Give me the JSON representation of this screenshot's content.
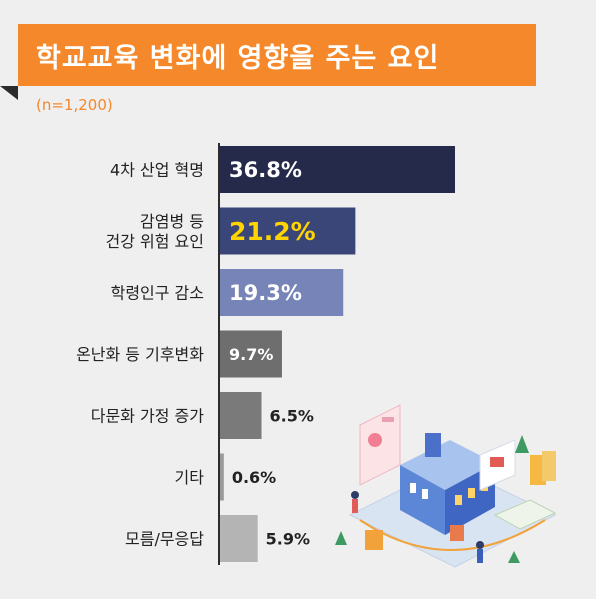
{
  "header": {
    "title": "학교교육 변화에 영향을 주는 요인",
    "sample": "(n=1,200)"
  },
  "colors": {
    "banner": "#f4882a",
    "bars": [
      "#25294a",
      "#3a4677",
      "#7784b7",
      "#6e6e6e",
      "#7a7a7a",
      "#9a9a9a",
      "#b4b4b4"
    ],
    "highlight_text": "#ffd400"
  },
  "chart_data": {
    "type": "bar",
    "orientation": "horizontal",
    "categories": [
      [
        "4차 산업 혁명"
      ],
      [
        "감염병 등",
        "건강 위험 요인"
      ],
      [
        "학령인구 감소"
      ],
      [
        "온난화 등 기후변화"
      ],
      [
        "다문화 가정 증가"
      ],
      [
        "기타"
      ],
      [
        "모름/무응답"
      ]
    ],
    "values": [
      36.8,
      21.2,
      19.3,
      9.7,
      6.5,
      0.6,
      5.9
    ],
    "value_labels": [
      "36.8%",
      "21.2%",
      "19.3%",
      "9.7%",
      "6.5%",
      "0.6%",
      "5.9%"
    ],
    "unit": "%",
    "xlim": [
      0,
      40
    ]
  }
}
